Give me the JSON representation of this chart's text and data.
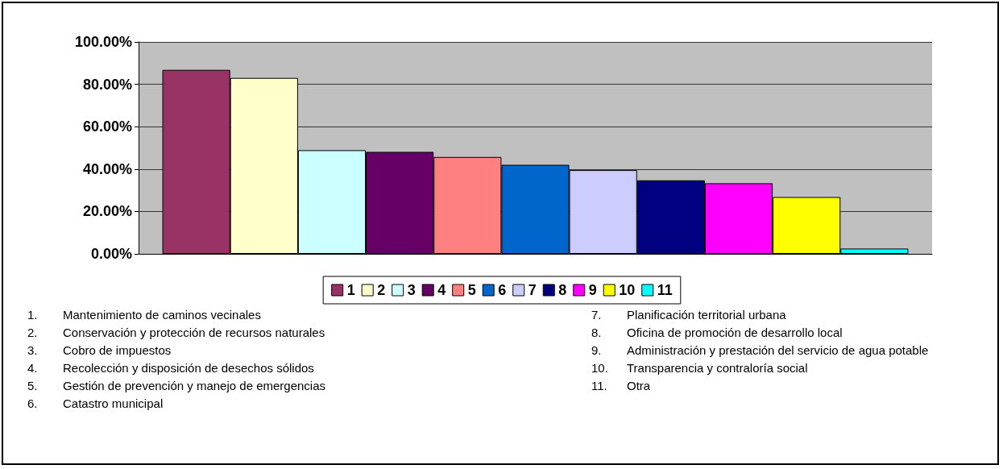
{
  "chart_data": {
    "type": "bar",
    "categories": [
      null
    ],
    "series": [
      {
        "name": "1",
        "color": "#993366",
        "values": [
          86.8
        ]
      },
      {
        "name": "2",
        "color": "#ffffcc",
        "values": [
          83.0
        ]
      },
      {
        "name": "3",
        "color": "#ccffff",
        "values": [
          48.9
        ]
      },
      {
        "name": "4",
        "color": "#660066",
        "values": [
          48.1
        ]
      },
      {
        "name": "5",
        "color": "#ff8080",
        "values": [
          45.7
        ]
      },
      {
        "name": "6",
        "color": "#0066cc",
        "values": [
          42.0
        ]
      },
      {
        "name": "7",
        "color": "#ccccff",
        "values": [
          39.5
        ]
      },
      {
        "name": "8",
        "color": "#000080",
        "values": [
          34.7
        ]
      },
      {
        "name": "9",
        "color": "#ff00ff",
        "values": [
          33.3
        ]
      },
      {
        "name": "10",
        "color": "#ffff00",
        "values": [
          26.8
        ]
      },
      {
        "name": "11",
        "color": "#00ffff",
        "values": [
          2.5
        ]
      }
    ],
    "ylim": [
      0,
      100
    ],
    "yticks": [
      {
        "value": 0,
        "label": "0.00%"
      },
      {
        "value": 20,
        "label": "20.00%"
      },
      {
        "value": 40,
        "label": "40.00%"
      },
      {
        "value": 60,
        "label": "60.00%"
      },
      {
        "value": 80,
        "label": "80.00%"
      },
      {
        "value": 100,
        "label": "100.00%"
      }
    ],
    "grid": "y",
    "legend": "bottom",
    "annotations": [
      "1. Mantenimiento de caminos vecinales",
      "2. Conservación y protección de recursos naturales",
      "3. Cobro de impuestos",
      "4. Recolección y disposición de desechos sólidos",
      "5. Gestión de prevención y manejo de emergencias",
      "6. Catastro municipal",
      "7. Planificación territorial urbana",
      "8. Oficina de promoción de desarrollo local",
      "9. Administración y prestación del servicio de agua potable",
      "10. Transparencia y contraloría social",
      "11. Otra"
    ]
  }
}
